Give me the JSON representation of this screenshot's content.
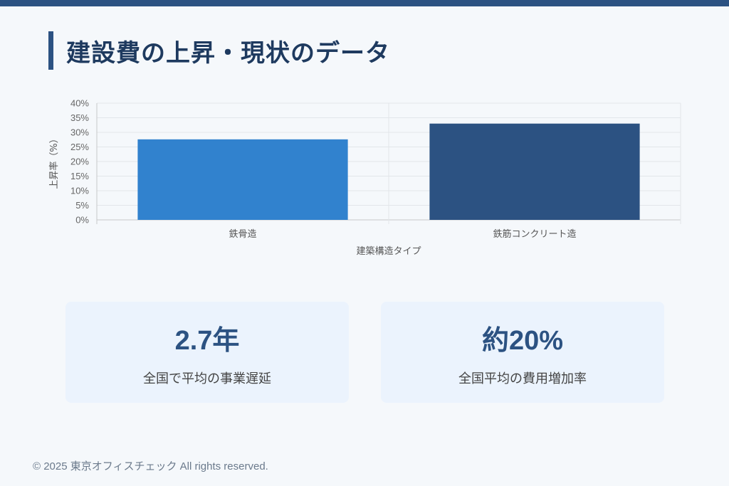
{
  "page": {
    "title": "建設費の上昇・現状のデータ"
  },
  "chart_data": {
    "type": "bar",
    "categories": [
      "鉄骨造",
      "鉄筋コンクリート造"
    ],
    "values": [
      27.6,
      33.0
    ],
    "bar_colors": [
      "#3182ce",
      "#2c5282"
    ],
    "xlabel": "建築構造タイプ",
    "ylabel": "上昇率（%）",
    "ylim": [
      0,
      40
    ],
    "yticks": [
      "0%",
      "5%",
      "10%",
      "15%",
      "20%",
      "25%",
      "30%",
      "35%",
      "40%"
    ],
    "grid": true
  },
  "stats": [
    {
      "value": "2.7年",
      "label": "全国で平均の事業遅延"
    },
    {
      "value": "約20%",
      "label": "全国平均の費用増加率"
    }
  ],
  "footer": {
    "text": "© 2025 東京オフィスチェック All rights reserved."
  },
  "colors": {
    "accent": "#2c5282",
    "card_bg": "#ebf3fd",
    "page_bg": "#f5f8fb"
  }
}
